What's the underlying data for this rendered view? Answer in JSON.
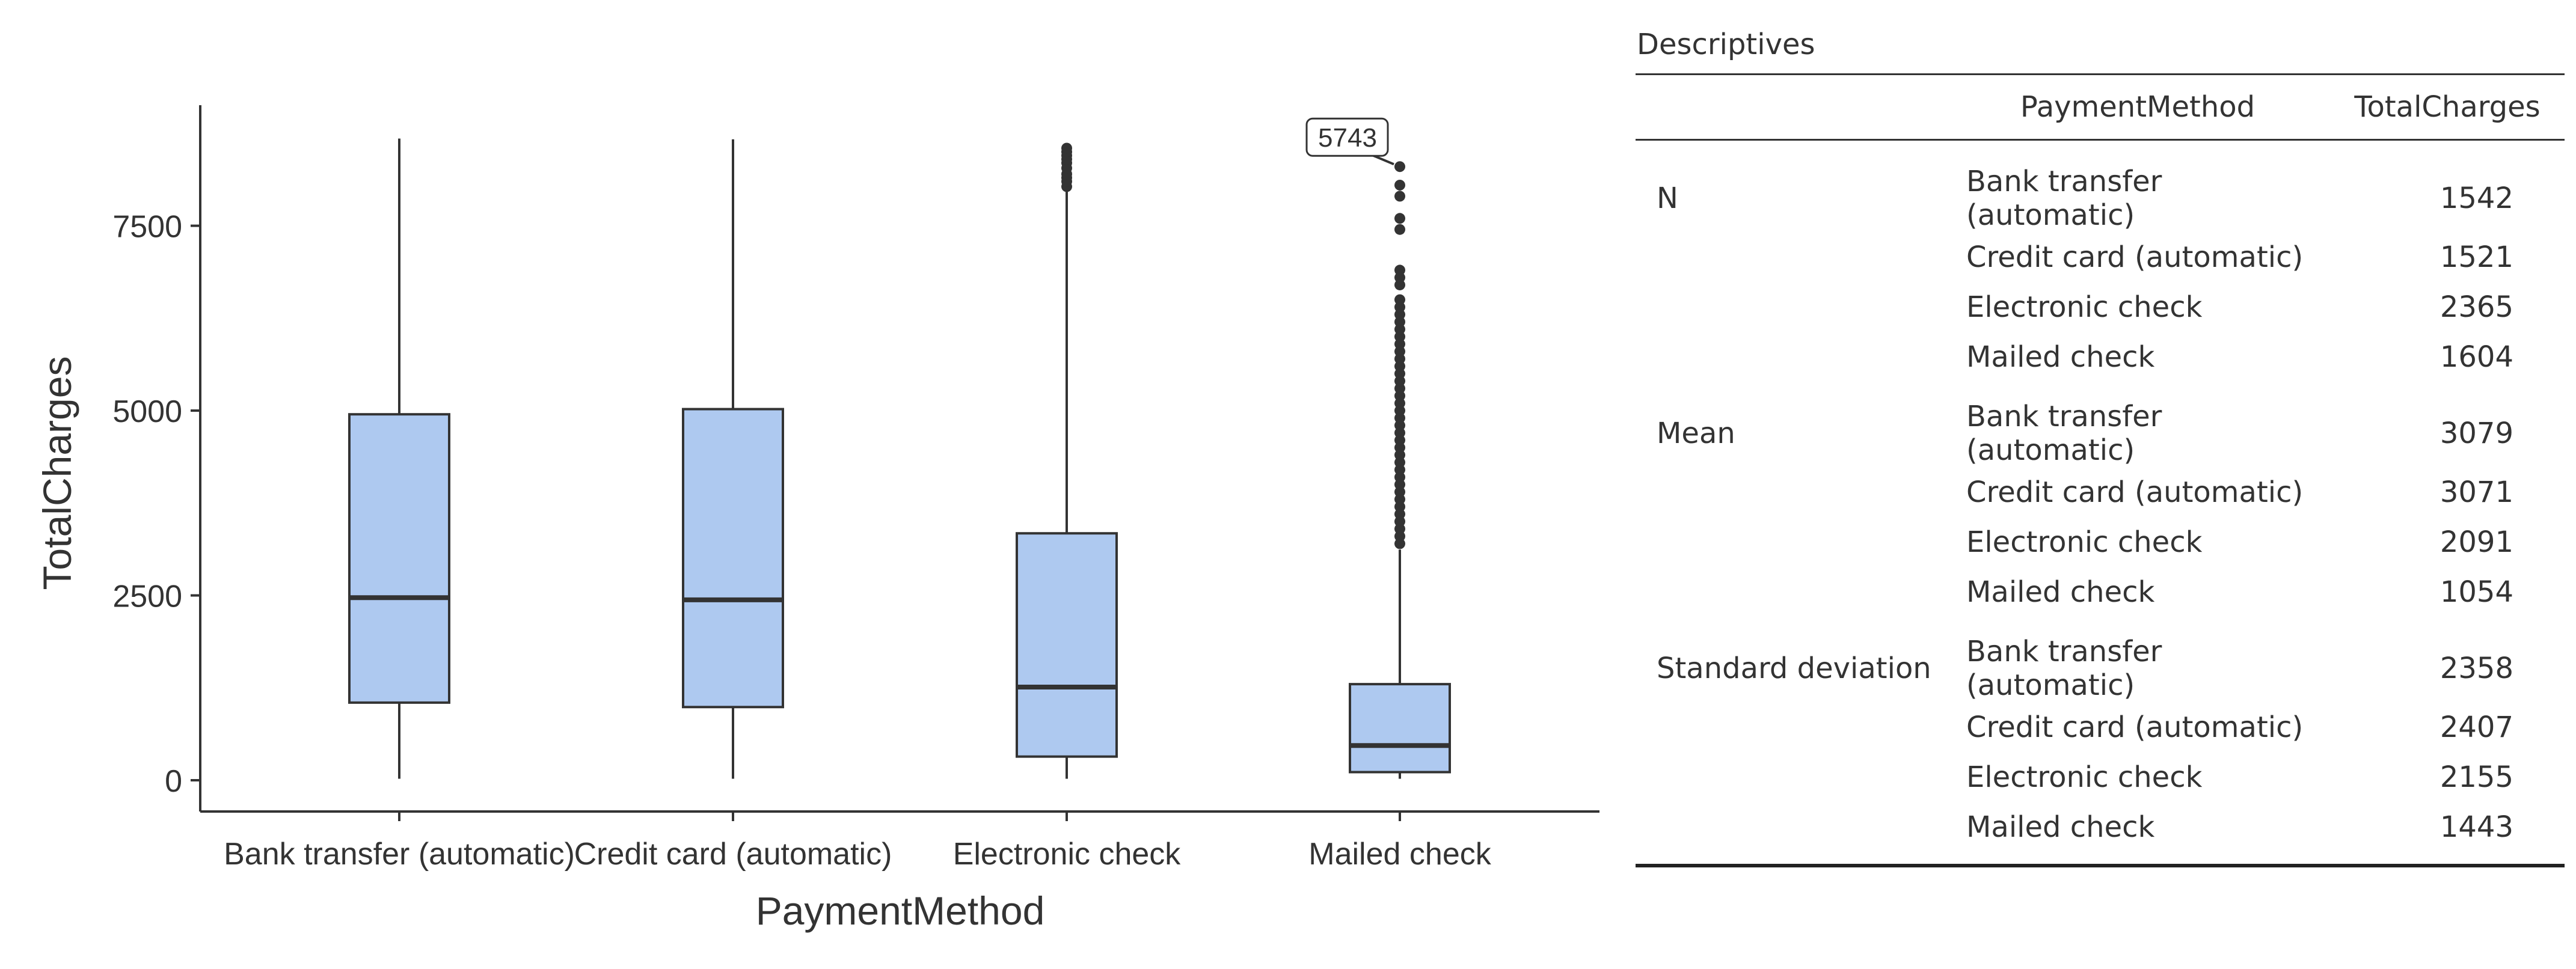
{
  "chart_data": {
    "type": "box",
    "xlabel": "PaymentMethod",
    "ylabel": "TotalCharges",
    "categories": [
      "Bank transfer (automatic)",
      "Credit card (automatic)",
      "Electronic check",
      "Mailed check"
    ],
    "yticks": [
      0,
      2500,
      5000,
      7500
    ],
    "ylim": [
      -400,
      9100
    ],
    "box_color": "#aec9f0",
    "line_color": "#333333",
    "boxes": [
      {
        "q1": 1050,
        "median": 2470,
        "q3": 4950,
        "whisker_low": 20,
        "whisker_high": 8680,
        "outliers": []
      },
      {
        "q1": 990,
        "median": 2440,
        "q3": 5020,
        "whisker_low": 20,
        "whisker_high": 8670,
        "outliers": []
      },
      {
        "q1": 320,
        "median": 1260,
        "q3": 3340,
        "whisker_low": 20,
        "whisker_high": 7960,
        "outliers": [
          8030,
          8100,
          8150,
          8200,
          8280,
          8350,
          8400,
          8450,
          8500,
          8550
        ]
      },
      {
        "q1": 110,
        "median": 470,
        "q3": 1300,
        "whisker_low": 20,
        "whisker_high": 3120,
        "outliers": [
          3200,
          3300,
          3400,
          3500,
          3600,
          3700,
          3800,
          3900,
          4000,
          4100,
          4200,
          4300,
          4400,
          4500,
          4600,
          4700,
          4800,
          4900,
          5000,
          5100,
          5200,
          5300,
          5400,
          5500,
          5600,
          5700,
          5800,
          5900,
          6000,
          6100,
          6200,
          6300,
          6400,
          6500,
          6700,
          6800,
          6900,
          7450,
          7600,
          7900,
          8050,
          8300
        ]
      }
    ],
    "annotation": {
      "label": "5743",
      "category_index": 3,
      "value": 8300
    }
  },
  "table": {
    "title": "Descriptives",
    "headers": [
      "",
      "PaymentMethod",
      "TotalCharges"
    ],
    "groups": [
      {
        "stat": "N",
        "rows": [
          {
            "method": "Bank transfer (automatic)",
            "value": "1542"
          },
          {
            "method": "Credit card (automatic)",
            "value": "1521"
          },
          {
            "method": "Electronic check",
            "value": "2365"
          },
          {
            "method": "Mailed check",
            "value": "1604"
          }
        ]
      },
      {
        "stat": "Mean",
        "rows": [
          {
            "method": "Bank transfer (automatic)",
            "value": "3079"
          },
          {
            "method": "Credit card (automatic)",
            "value": "3071"
          },
          {
            "method": "Electronic check",
            "value": "2091"
          },
          {
            "method": "Mailed check",
            "value": "1054"
          }
        ]
      },
      {
        "stat": "Standard deviation",
        "rows": [
          {
            "method": "Bank transfer (automatic)",
            "value": "2358"
          },
          {
            "method": "Credit card (automatic)",
            "value": "2407"
          },
          {
            "method": "Electronic check",
            "value": "2155"
          },
          {
            "method": "Mailed check",
            "value": "1443"
          }
        ]
      }
    ]
  }
}
